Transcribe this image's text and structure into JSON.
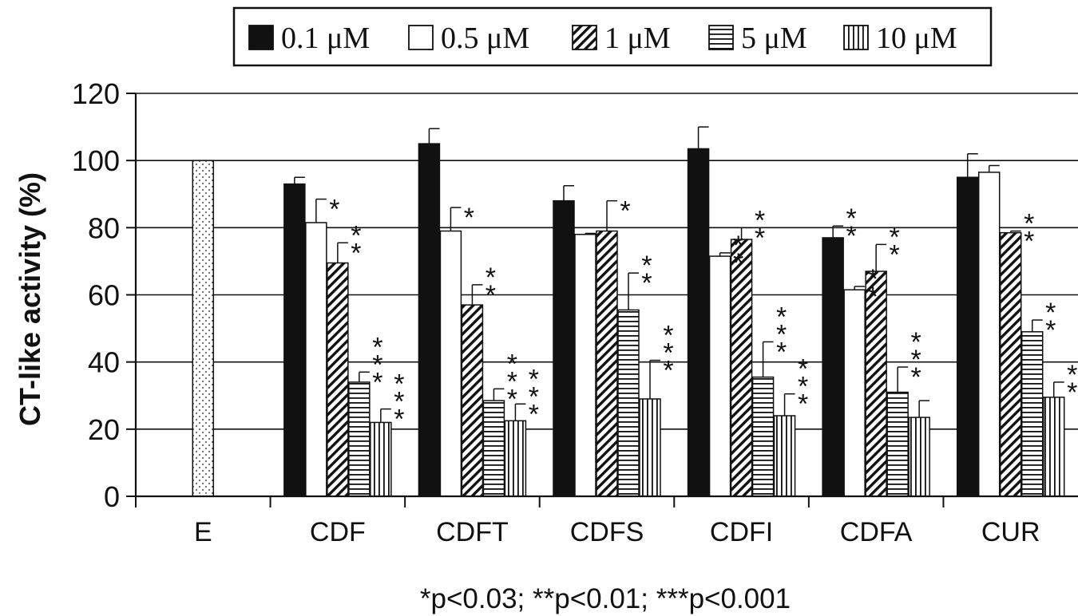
{
  "chart_data": {
    "type": "bar",
    "ylabel": "CT-like activity (%)",
    "ylim": [
      0,
      120
    ],
    "yticks": [
      0,
      20,
      40,
      60,
      80,
      100,
      120
    ],
    "grid": true,
    "legend_position": "top",
    "footnote": "*p<0.03; **p<0.01; ***p<0.001",
    "categories": [
      "E",
      "CDF",
      "CDFT",
      "CDFS",
      "CDFI",
      "CDFA",
      "CUR"
    ],
    "control": {
      "category": "E",
      "value": 100,
      "pattern": "dots"
    },
    "series": [
      {
        "name": "0.1 μM",
        "pattern": "solid-black",
        "values": [
          null,
          93,
          105,
          88,
          103.5,
          77,
          95
        ],
        "errors": [
          null,
          2,
          4.5,
          4.5,
          6.5,
          3.5,
          7
        ],
        "significance": [
          "",
          "",
          "",
          "",
          "",
          "**",
          ""
        ]
      },
      {
        "name": "0.5 μM",
        "pattern": "white",
        "values": [
          null,
          81.5,
          79,
          78,
          71.5,
          61.5,
          96.5
        ],
        "errors": [
          null,
          7,
          7,
          0.3,
          1,
          1,
          2
        ],
        "significance": [
          "",
          "*",
          "*",
          "",
          "**",
          "**",
          ""
        ]
      },
      {
        "name": "1 μM",
        "pattern": "diagonal",
        "values": [
          null,
          69.5,
          57,
          79,
          76.5,
          67,
          78.5
        ],
        "errors": [
          null,
          6,
          6,
          9,
          3.5,
          8,
          0.5
        ],
        "significance": [
          "",
          "**",
          "**",
          "*",
          "**",
          "**",
          "**"
        ]
      },
      {
        "name": "5 μM",
        "pattern": "horizontal",
        "values": [
          null,
          34,
          28.5,
          55.5,
          35.5,
          31,
          49
        ],
        "errors": [
          null,
          3,
          3.5,
          11,
          10.5,
          7.5,
          3.5
        ],
        "significance": [
          "",
          "***",
          "***",
          "**",
          "***",
          "***",
          "**"
        ]
      },
      {
        "name": "10 μM",
        "pattern": "vertical",
        "values": [
          null,
          22,
          22.5,
          29,
          24,
          23.5,
          29.5
        ],
        "errors": [
          null,
          4,
          5,
          11.5,
          6.5,
          5,
          4.5
        ],
        "significance": [
          "",
          "***",
          "***",
          "***",
          "***",
          "",
          "**"
        ]
      }
    ]
  }
}
